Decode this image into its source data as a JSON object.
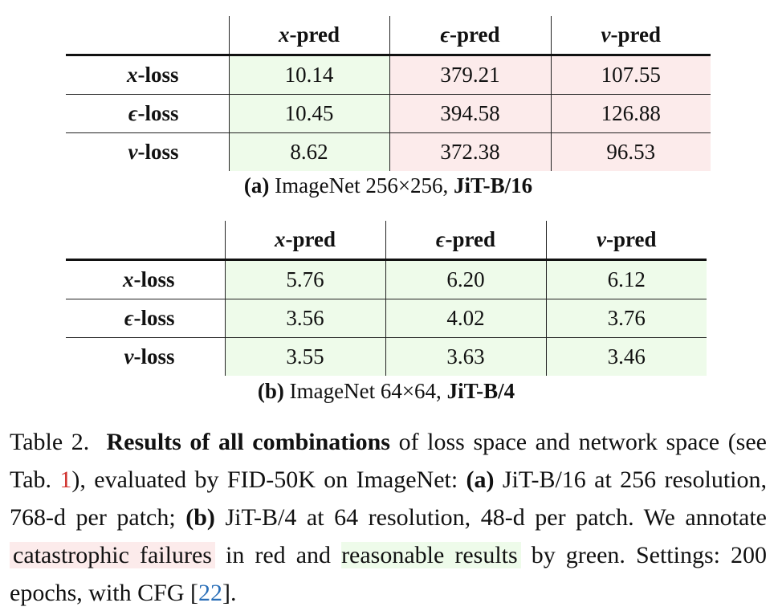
{
  "tables": [
    {
      "columns": [
        "x-pred",
        "ϵ-pred",
        "v-pred"
      ],
      "rows": [
        {
          "label": "x-loss",
          "values": [
            "10.14",
            "379.21",
            "107.55"
          ],
          "status": [
            "reasonable",
            "catastrophic",
            "catastrophic"
          ]
        },
        {
          "label": "ϵ-loss",
          "values": [
            "10.45",
            "394.58",
            "126.88"
          ],
          "status": [
            "reasonable",
            "catastrophic",
            "catastrophic"
          ]
        },
        {
          "label": "v-loss",
          "values": [
            "8.62",
            "372.38",
            "96.53"
          ],
          "status": [
            "reasonable",
            "catastrophic",
            "catastrophic"
          ]
        }
      ],
      "subcaption": {
        "tag": "(a)",
        "text": " ImageNet 256×256, ",
        "model": "JiT-B/16"
      }
    },
    {
      "columns": [
        "x-pred",
        "ϵ-pred",
        "v-pred"
      ],
      "rows": [
        {
          "label": "x-loss",
          "values": [
            "5.76",
            "6.20",
            "6.12"
          ],
          "status": [
            "reasonable",
            "reasonable",
            "reasonable"
          ]
        },
        {
          "label": "ϵ-loss",
          "values": [
            "3.56",
            "4.02",
            "3.76"
          ],
          "status": [
            "reasonable",
            "reasonable",
            "reasonable"
          ]
        },
        {
          "label": "v-loss",
          "values": [
            "3.55",
            "3.63",
            "3.46"
          ],
          "status": [
            "reasonable",
            "reasonable",
            "reasonable"
          ]
        }
      ],
      "subcaption": {
        "tag": "(b)",
        "text": " ImageNet 64×64, ",
        "model": "JiT-B/4"
      }
    }
  ],
  "caption": {
    "label": "Table 2. ",
    "bold": "Results of all combinations",
    "t1": " of loss space and network space (see Tab. ",
    "ref1": "1",
    "t2": "), evaluated by FID-50K on ImageNet: ",
    "a": "(a)",
    "t3": " JiT-B/16 at 256 resolution, 768-d per patch; ",
    "b": "(b)",
    "t4": " JiT-B/4 at 64 resolution, 48-d per patch. We annotate ",
    "red_phrase": "catastrophic failures",
    "t5": " in red and ",
    "green_phrase": "reasonable results",
    "t6": " by green. Settings: 200 epochs, with CFG [",
    "ref2": "22",
    "t7": "]."
  },
  "colors": {
    "reasonable": "#eefbea",
    "catastrophic": "#fcebeb",
    "ref_red": "#d0312d",
    "ref_blue": "#2a6fb8"
  }
}
